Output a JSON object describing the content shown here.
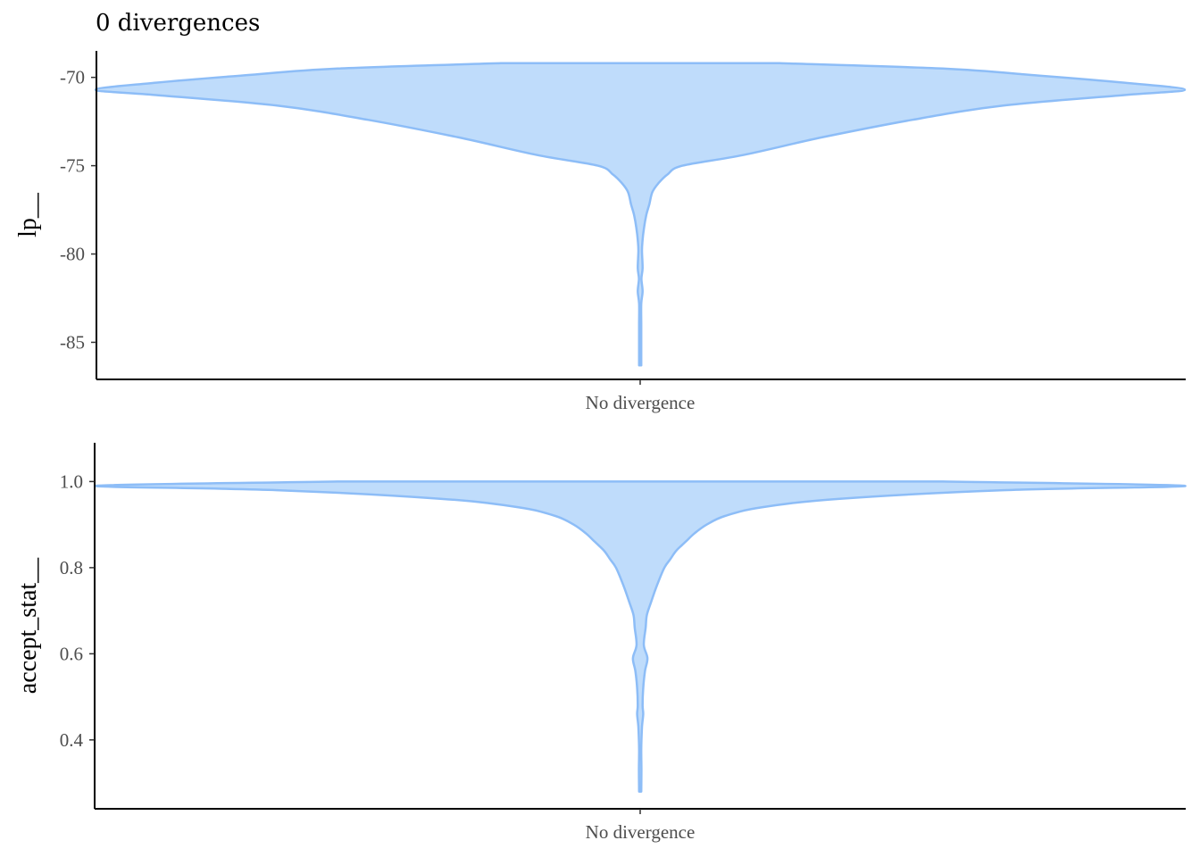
{
  "title": "0 divergences",
  "colors": {
    "fill": "#bfdcfb",
    "outline": "#8dbdf7",
    "axis": "#000000",
    "tick_text": "#4d4d4d"
  },
  "chart_data": [
    {
      "type": "violin",
      "ylabel": "lp__",
      "xlabel": "",
      "categories": [
        "No divergence"
      ],
      "ylim": [
        -87.1,
        -68.5
      ],
      "yticks": [
        -70,
        -75,
        -80,
        -85
      ],
      "ytick_labels": [
        "-70",
        "-75",
        "-80",
        "-85"
      ],
      "density": [
        [
          -69.2,
          0.23
        ],
        [
          -69.5,
          0.5
        ],
        [
          -69.9,
          0.66
        ],
        [
          -70.3,
          0.8
        ],
        [
          -70.7,
          0.9
        ],
        [
          -71.0,
          0.8
        ],
        [
          -71.6,
          0.6
        ],
        [
          -72.4,
          0.45
        ],
        [
          -73.4,
          0.3
        ],
        [
          -74.4,
          0.17
        ],
        [
          -75.0,
          0.07
        ],
        [
          -75.5,
          0.045
        ],
        [
          -76.0,
          0.03
        ],
        [
          -76.5,
          0.02
        ],
        [
          -77.2,
          0.015
        ],
        [
          -77.8,
          0.01
        ],
        [
          -78.6,
          0.006
        ],
        [
          -79.2,
          0.004
        ],
        [
          -79.8,
          0.003
        ],
        [
          -80.8,
          0.004
        ],
        [
          -81.4,
          0.002
        ],
        [
          -82.1,
          0.004
        ],
        [
          -82.8,
          0.0015
        ],
        [
          -84.0,
          0.0015
        ],
        [
          -85.5,
          0.0015
        ],
        [
          -86.3,
          0.001
        ]
      ]
    },
    {
      "type": "violin",
      "ylabel": "accept_stat__",
      "xlabel": "",
      "categories": [
        "No divergence"
      ],
      "ylim": [
        0.24,
        1.09
      ],
      "yticks": [
        1.0,
        0.8,
        0.6,
        0.4
      ],
      "ytick_labels": [
        "1.0",
        "0.8",
        "0.6",
        "0.4"
      ],
      "density": [
        [
          1.0,
          0.5
        ],
        [
          0.99,
          0.9
        ],
        [
          0.98,
          0.6
        ],
        [
          0.96,
          0.33
        ],
        [
          0.94,
          0.2
        ],
        [
          0.92,
          0.14
        ],
        [
          0.9,
          0.11
        ],
        [
          0.88,
          0.09
        ],
        [
          0.86,
          0.075
        ],
        [
          0.84,
          0.06
        ],
        [
          0.82,
          0.05
        ],
        [
          0.8,
          0.04
        ],
        [
          0.76,
          0.028
        ],
        [
          0.72,
          0.018
        ],
        [
          0.69,
          0.011
        ],
        [
          0.66,
          0.009
        ],
        [
          0.62,
          0.006
        ],
        [
          0.59,
          0.012
        ],
        [
          0.56,
          0.008
        ],
        [
          0.52,
          0.005
        ],
        [
          0.48,
          0.004
        ],
        [
          0.46,
          0.005
        ],
        [
          0.43,
          0.003
        ],
        [
          0.38,
          0.0015
        ],
        [
          0.33,
          0.002
        ],
        [
          0.28,
          0.001
        ]
      ]
    }
  ]
}
